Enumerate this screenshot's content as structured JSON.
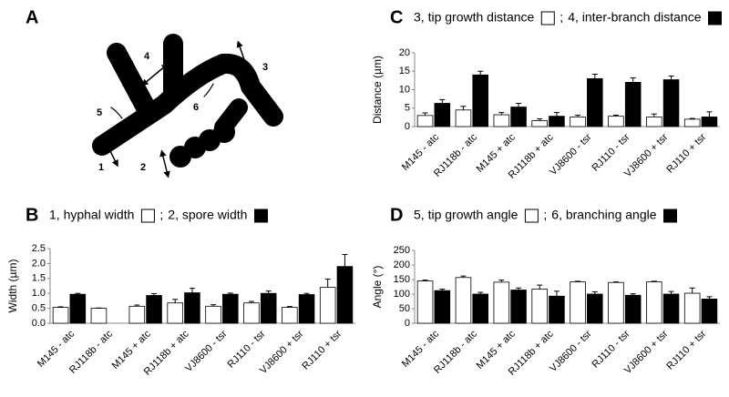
{
  "diagram": {
    "panel_label": "A",
    "labels": [
      "1",
      "2",
      "3",
      "4",
      "5",
      "6"
    ]
  },
  "chart_data": [
    {
      "type": "bar",
      "panel_label": "B",
      "legend_separator": ";",
      "y_label": "Width (µm)",
      "categories": [
        "M145 - atc",
        "RJ118b - atc",
        "M145 + atc",
        "RJ118b + atc",
        "VJ8600 - tsr",
        "RJ110 - tsr",
        "VJ8600 + tsr",
        "RJ110 + tsr"
      ],
      "series": [
        {
          "name": "1, hyphal width",
          "color": "#ffffff",
          "values": [
            0.53,
            0.5,
            0.57,
            0.68,
            0.57,
            0.68,
            0.53,
            1.2
          ],
          "errors": [
            0.02,
            0.01,
            0.04,
            0.12,
            0.05,
            0.05,
            0.03,
            0.28
          ]
        },
        {
          "name": "2, spore width",
          "color": "#000000",
          "values": [
            0.97,
            null,
            0.93,
            1.02,
            0.97,
            1.0,
            0.96,
            1.9
          ],
          "errors": [
            0.03,
            null,
            0.06,
            0.15,
            0.04,
            0.08,
            0.04,
            0.4
          ]
        }
      ],
      "ylim": [
        0,
        2.5
      ],
      "yticks": [
        {
          "value": 0,
          "label": "0.0"
        },
        0.5,
        {
          "value": 1,
          "label": "1.0"
        },
        1.5,
        {
          "value": 2,
          "label": "2.0"
        },
        2.5
      ]
    },
    {
      "type": "bar",
      "panel_label": "C",
      "legend_separator": ";",
      "y_label": "Distance (µm)",
      "categories": [
        "M145 - atc",
        "RJ118b - atc",
        "M145 + atc",
        "RJ118b + atc",
        "VJ8600 - tsr",
        "RJ110 - tsr",
        "VJ8600 + tsr",
        "RJ110 + tsr"
      ],
      "series": [
        {
          "name": "3, tip growth distance",
          "color": "#ffffff",
          "values": [
            3.0,
            4.5,
            3.2,
            1.6,
            2.6,
            2.8,
            2.6,
            2.0
          ],
          "errors": [
            0.7,
            1.0,
            0.6,
            0.5,
            0.5,
            0.3,
            0.8,
            0.2
          ]
        },
        {
          "name": "4, inter-branch distance",
          "color": "#000000",
          "values": [
            6.3,
            14,
            5.3,
            2.8,
            13,
            12,
            12.7,
            2.6
          ],
          "errors": [
            1.0,
            1.0,
            1.0,
            1.0,
            1.2,
            1.2,
            1.0,
            1.4
          ]
        }
      ],
      "ylim": [
        0,
        20
      ],
      "yticks": [
        0,
        5,
        10,
        15,
        20
      ]
    },
    {
      "type": "bar",
      "panel_label": "D",
      "legend_separator": ";",
      "y_label": "Angle (°)",
      "categories": [
        "M145 - atc",
        "RJ118b - atc",
        "M145 + atc",
        "RJ118b + atc",
        "VJ8600 - tsr",
        "RJ110 - tsr",
        "VJ8600 + tsr",
        "RJ110 + tsr"
      ],
      "series": [
        {
          "name": "5, tip growth angle",
          "color": "#ffffff",
          "values": [
            145,
            157,
            141,
            117,
            142,
            140,
            142,
            103
          ],
          "errors": [
            3,
            5,
            7,
            14,
            2,
            2,
            2,
            18
          ]
        },
        {
          "name": "6, branching angle",
          "color": "#000000",
          "values": [
            112,
            100,
            114,
            93,
            100,
            96,
            100,
            83
          ],
          "errors": [
            5,
            6,
            7,
            17,
            8,
            5,
            9,
            8
          ]
        }
      ],
      "ylim": [
        0,
        250
      ],
      "yticks": [
        0,
        50,
        100,
        150,
        200,
        250
      ]
    }
  ]
}
